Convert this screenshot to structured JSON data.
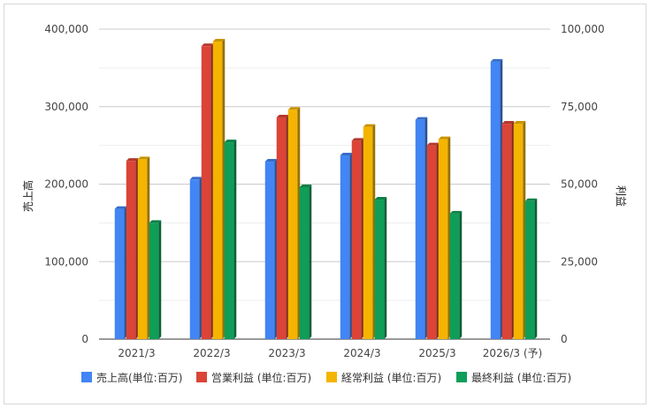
{
  "chart_data": {
    "type": "bar",
    "categories": [
      "2021/3",
      "2022/3",
      "2023/3",
      "2024/3",
      "2025/3",
      "2026/3 (予)"
    ],
    "y_left": {
      "label": "売上高",
      "range": [
        0,
        400000
      ],
      "ticks": [
        "0",
        "100,000",
        "200,000",
        "300,000",
        "400,000"
      ]
    },
    "y_right": {
      "label": "利益",
      "range": [
        0,
        100000
      ],
      "ticks": [
        "0",
        "25,000",
        "50,000",
        "75,000",
        "100,000"
      ]
    },
    "grid": true,
    "legend_position": "bottom",
    "series": [
      {
        "name": "売上高(単位:百万)",
        "axis": "left",
        "color": "#4285f4",
        "values": [
          168000,
          206000,
          229000,
          237000,
          283000,
          358000
        ]
      },
      {
        "name": "営業利益 (単位:百万)",
        "axis": "right",
        "color": "#db4437",
        "values": [
          57500,
          94500,
          71500,
          64000,
          62500,
          69500
        ]
      },
      {
        "name": "経常利益 (単位:百万)",
        "axis": "right",
        "color": "#f4b400",
        "values": [
          58000,
          96000,
          74000,
          68500,
          64500,
          69500
        ]
      },
      {
        "name": "最終利益 (単位:百万)",
        "axis": "right",
        "color": "#0f9d58",
        "values": [
          37500,
          63500,
          49000,
          45000,
          40500,
          44500
        ]
      }
    ]
  }
}
